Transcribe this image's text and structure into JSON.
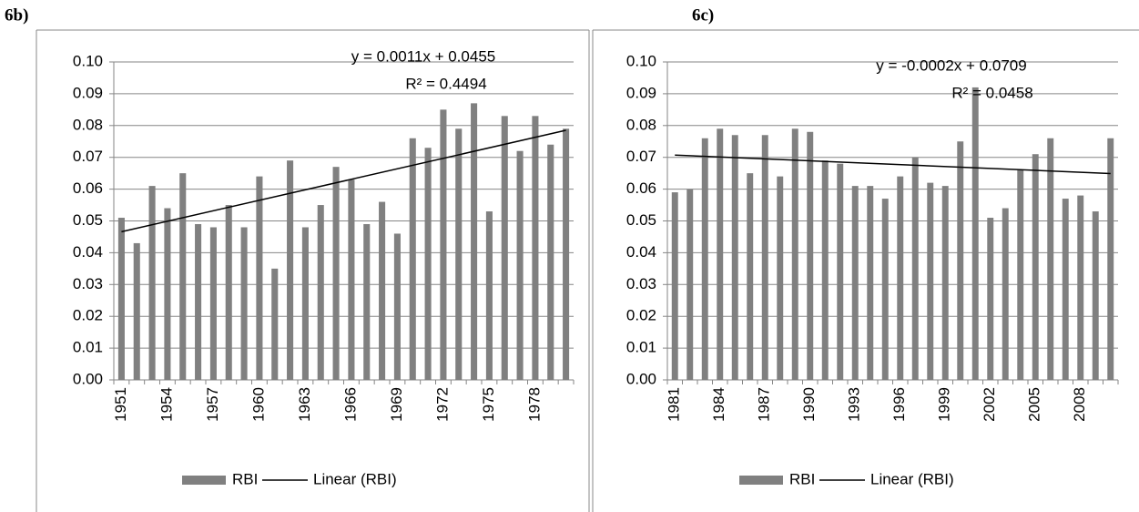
{
  "chart_data": [
    {
      "type": "bar",
      "panel_label": "6b)",
      "categories": [
        "1951",
        null,
        null,
        "1954",
        null,
        null,
        "1957",
        null,
        null,
        "1960",
        null,
        null,
        "1963",
        null,
        null,
        "1966",
        null,
        null,
        "1969",
        null,
        null,
        "1972",
        null,
        null,
        "1975",
        null,
        null,
        "1978",
        null,
        null
      ],
      "series": [
        {
          "name": "RBI",
          "color": "#808080",
          "values": [
            0.051,
            0.043,
            0.061,
            0.054,
            0.065,
            0.049,
            0.048,
            0.055,
            0.048,
            0.064,
            0.035,
            0.069,
            0.048,
            0.055,
            0.067,
            0.063,
            0.049,
            0.056,
            0.046,
            0.076,
            0.073,
            0.085,
            0.079,
            0.087,
            0.053,
            0.083,
            0.072,
            0.083,
            0.074,
            0.079
          ]
        }
      ],
      "trendline": {
        "name": "Linear (RBI)",
        "color": "#000000",
        "label": "y = 0.0011x + 0.0455",
        "slope": 0.0011,
        "intercept": 0.0455,
        "r2_label": "R² = 0.4494"
      },
      "ylim": [
        0,
        0.1
      ],
      "yticks": [
        {
          "value": 0,
          "label": "0.00"
        },
        {
          "value": 0.01,
          "label": "0.01"
        },
        {
          "value": 0.02,
          "label": "0.02"
        },
        {
          "value": 0.03,
          "label": "0.03"
        },
        {
          "value": 0.04,
          "label": "0.04"
        },
        {
          "value": 0.05,
          "label": "0.05"
        },
        {
          "value": 0.06,
          "label": "0.06"
        },
        {
          "value": 0.07,
          "label": "0.07"
        },
        {
          "value": 0.08,
          "label": "0.08"
        },
        {
          "value": 0.09,
          "label": "0.09"
        },
        {
          "value": 0.1,
          "label": "0.10"
        }
      ],
      "grid": true,
      "legend": "bottom"
    },
    {
      "type": "bar",
      "panel_label": "6c)",
      "categories": [
        "1981",
        null,
        null,
        "1984",
        null,
        null,
        "1987",
        null,
        null,
        "1990",
        null,
        null,
        "1993",
        null,
        null,
        "1996",
        null,
        null,
        "1999",
        null,
        null,
        "2002",
        null,
        null,
        "2005",
        null,
        null,
        "2008",
        null,
        null
      ],
      "series": [
        {
          "name": "RBI",
          "color": "#808080",
          "values": [
            0.059,
            0.06,
            0.076,
            0.079,
            0.077,
            0.065,
            0.077,
            0.064,
            0.079,
            0.078,
            0.069,
            0.068,
            0.061,
            0.061,
            0.057,
            0.064,
            0.07,
            0.062,
            0.061,
            0.075,
            0.092,
            0.051,
            0.054,
            0.066,
            0.071,
            0.076,
            0.057,
            0.058,
            0.053,
            0.076
          ]
        }
      ],
      "trendline": {
        "name": "Linear (RBI)",
        "color": "#000000",
        "label": "y = -0.0002x + 0.0709",
        "slope": -0.0002,
        "intercept": 0.0709,
        "r2_label": "R² = 0.0458"
      },
      "ylim": [
        0,
        0.1
      ],
      "yticks": [
        {
          "value": 0,
          "label": "0.00"
        },
        {
          "value": 0.01,
          "label": "0.01"
        },
        {
          "value": 0.02,
          "label": "0.02"
        },
        {
          "value": 0.03,
          "label": "0.03"
        },
        {
          "value": 0.04,
          "label": "0.04"
        },
        {
          "value": 0.05,
          "label": "0.05"
        },
        {
          "value": 0.06,
          "label": "0.06"
        },
        {
          "value": 0.07,
          "label": "0.07"
        },
        {
          "value": 0.08,
          "label": "0.08"
        },
        {
          "value": 0.09,
          "label": "0.09"
        },
        {
          "value": 0.1,
          "label": "0.10"
        }
      ],
      "grid": true,
      "legend": "bottom"
    }
  ]
}
